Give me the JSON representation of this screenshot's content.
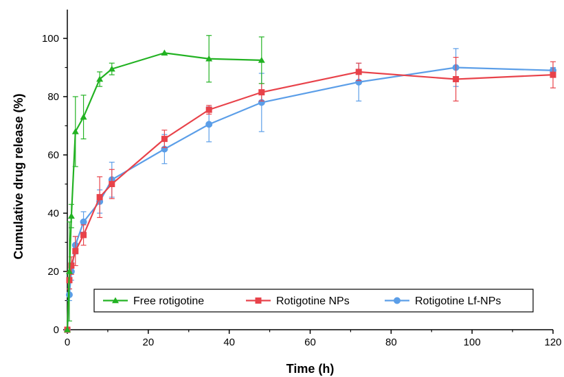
{
  "chart_data": {
    "type": "line",
    "xlabel": "Time (h)",
    "ylabel": "Cumulative drug release (%)",
    "xlim": [
      0,
      120
    ],
    "ylim": [
      0,
      100
    ],
    "xticks": [
      0,
      20,
      40,
      60,
      80,
      100,
      120
    ],
    "yticks": [
      0,
      20,
      40,
      60,
      80,
      100
    ],
    "grid": false,
    "legend_position": "bottom-right",
    "series": [
      {
        "name": "Free rotigotine",
        "color": "#22b222",
        "marker": "triangle",
        "x": [
          0,
          0.5,
          1,
          2,
          4,
          8,
          11,
          24,
          35,
          48
        ],
        "y": [
          0,
          20,
          39,
          68,
          73,
          86,
          89.5,
          95,
          93,
          92.5
        ],
        "err": [
          0,
          17,
          4,
          12,
          7.5,
          2.5,
          2,
          0,
          8,
          8
        ]
      },
      {
        "name": "Rotigotine NPs",
        "color": "#e8424a",
        "marker": "square",
        "x": [
          0,
          0.5,
          1,
          2,
          4,
          8,
          11,
          24,
          35,
          48,
          72,
          96,
          120
        ],
        "y": [
          0,
          17,
          22,
          27,
          32.5,
          45.5,
          50,
          65.5,
          75.5,
          81.5,
          88.5,
          86,
          87.5
        ],
        "err": [
          0,
          3,
          3,
          5,
          3.5,
          7,
          5,
          3,
          1.5,
          3,
          3,
          7.5,
          4.5
        ]
      },
      {
        "name": "Rotigotine Lf-NPs",
        "color": "#5b9ee8",
        "marker": "circle",
        "x": [
          0,
          0.5,
          1,
          2,
          4,
          8,
          11,
          24,
          35,
          48,
          72,
          96,
          120
        ],
        "y": [
          0,
          12,
          20,
          29,
          37,
          44,
          51.5,
          62,
          70.5,
          78,
          85,
          90,
          89
        ],
        "err": [
          0,
          2,
          3,
          3,
          3.5,
          4,
          6,
          5,
          6,
          10,
          6.5,
          6.5,
          1
        ]
      }
    ]
  }
}
